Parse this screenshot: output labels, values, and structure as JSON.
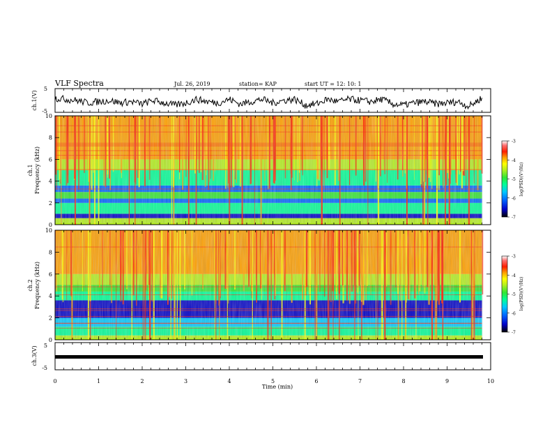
{
  "header": {
    "title": "VLF Spectra",
    "date": "Jul. 26, 2019",
    "station": "station= KAP",
    "start": "start  UT =   12: 10: 1"
  },
  "colorbar": {
    "label": "log(PSD)(V²/Hz)",
    "ticks": [
      "-3",
      "-4",
      "-5",
      "-6",
      "-7"
    ],
    "colors": [
      "#000000",
      "#0000c8",
      "#0064ff",
      "#00c8ff",
      "#00ff96",
      "#32e632",
      "#b4f01e",
      "#ffff00",
      "#ffa000",
      "#ff1e00",
      "#ff6e6e",
      "#ffffff"
    ]
  },
  "chart_data": [
    {
      "type": "line",
      "name": "ch1-waveform",
      "ylabel": "ch.1(V)",
      "ylim": [
        -5,
        5
      ],
      "yticks": [
        "5",
        "-5"
      ],
      "xlim": [
        0,
        10
      ],
      "x": [
        0,
        0.25,
        0.5,
        0.75,
        1,
        1.25,
        1.5,
        1.75,
        2,
        2.25,
        2.5,
        2.75,
        3,
        3.25,
        3.5,
        3.75,
        4,
        4.25,
        4.5,
        4.75,
        5,
        5.25,
        5.5,
        5.75,
        6,
        6.25,
        6.5,
        6.75,
        7,
        7.25,
        7.5,
        7.75,
        8,
        8.25,
        8.5,
        8.75,
        9,
        9.25,
        9.5,
        9.75
      ],
      "y": [
        1,
        0.5,
        0,
        -1,
        -0.5,
        0,
        -1,
        -0.5,
        -1.5,
        0,
        -1,
        -2,
        -1,
        0.5,
        -0.5,
        -1,
        0.5,
        -1.5,
        -0.5,
        0.5,
        -1,
        0,
        0.5,
        -2,
        -1.5,
        0.5,
        -0.5,
        0.5,
        0,
        -0.5,
        0.5,
        -1.5,
        -2,
        -1,
        -0.5,
        -1.5,
        -1,
        -0.5,
        -2.5,
        0.5
      ]
    },
    {
      "type": "heatmap",
      "name": "ch1-spectrogram",
      "ylabel": "ch.1 Frequency (kHz)",
      "ylim": [
        0,
        10
      ],
      "yticks": [
        "0",
        "2",
        "4",
        "6",
        "8",
        "10"
      ],
      "xlim": [
        0,
        10
      ],
      "band_edges_khz": [
        0,
        0.6,
        1,
        2,
        2.4,
        3,
        3.6,
        5,
        6,
        10
      ],
      "band_log_psd": [
        -4.5,
        -6.5,
        -5.2,
        -6,
        -5,
        -6.2,
        -5.5,
        -4.8,
        -4
      ]
    },
    {
      "type": "heatmap",
      "name": "ch2-spectrogram",
      "ylabel": "ch.2 Frequency (kHz)",
      "ylim": [
        0,
        10
      ],
      "yticks": [
        "0",
        "2",
        "4",
        "6",
        "8",
        "10"
      ],
      "xlim": [
        0,
        10
      ],
      "band_edges_khz": [
        0,
        0.4,
        1.2,
        2,
        3.6,
        4.4,
        5,
        6,
        10
      ],
      "band_log_psd": [
        -4.5,
        -5.3,
        -5.8,
        -6.6,
        -5.5,
        -5,
        -4.6,
        -4
      ]
    },
    {
      "type": "line",
      "name": "ch3-waveform",
      "ylabel": "ch.3(V)",
      "ylim": [
        -5,
        5
      ],
      "yticks": [
        "5",
        "-5"
      ],
      "xlim": [
        0,
        10
      ],
      "x": [
        0,
        9.8
      ],
      "y": [
        0,
        0
      ]
    }
  ],
  "xaxis": {
    "label": "Time (min)",
    "ticks": [
      "0",
      "1",
      "2",
      "3",
      "4",
      "5",
      "6",
      "7",
      "8",
      "9",
      "10"
    ]
  }
}
